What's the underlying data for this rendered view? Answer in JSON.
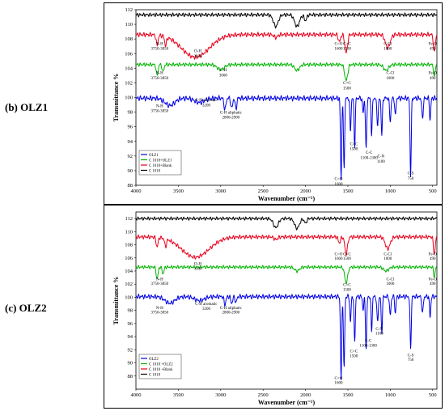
{
  "panels": [
    {
      "label": "(b)   OLZ1",
      "chart_data": {
        "type": "line",
        "xlabel": "Wavenumber (cm⁻¹)",
        "ylabel": "Transmittance %",
        "xlim": [
          4000,
          450
        ],
        "ylim": [
          88,
          112
        ],
        "x_reversed": true,
        "xticks": [
          4000,
          3500,
          3000,
          2500,
          2000,
          1500,
          1000,
          500
        ],
        "yticks": [
          88,
          90,
          92,
          94,
          96,
          98,
          100,
          102,
          104,
          106,
          108,
          110,
          112
        ],
        "legend": [
          "OLZ1",
          "C 1018+OLZ1",
          "C 1018+Blank",
          "C 1018"
        ],
        "series": [
          {
            "name": "C 1018",
            "color": "#000000",
            "base": 111.3,
            "noise": 0.25,
            "peaks": [
              [
                2350,
                1.6,
                40
              ],
              [
                2100,
                1.6,
                40
              ],
              [
                2000,
                0.8,
                20
              ]
            ]
          },
          {
            "name": "C 1018+Blank",
            "color": "#e8001c",
            "base": 108.6,
            "noise": 0.3,
            "peaks": [
              [
                3300,
                3.1,
                230
              ],
              [
                3750,
                1.4,
                15
              ],
              [
                3650,
                1.2,
                15
              ],
              [
                1600,
                1.0,
                18
              ],
              [
                1520,
                2.5,
                22
              ],
              [
                1030,
                1.8,
                40
              ],
              [
                480,
                2.5,
                15
              ],
              [
                2350,
                0.4,
                30
              ]
            ]
          },
          {
            "name": "C 1018+OLZ1",
            "color": "#00b400",
            "base": 104.5,
            "noise": 0.25,
            "peaks": [
              [
                3750,
                1.5,
                15
              ],
              [
                3680,
                1.0,
                15
              ],
              [
                3000,
                0.7,
                60
              ],
              [
                1520,
                2.2,
                25
              ],
              [
                2100,
                0.8,
                40
              ],
              [
                480,
                1.8,
                12
              ],
              [
                1050,
                0.8,
                40
              ]
            ]
          },
          {
            "name": "OLZ1",
            "color": "#0000e6",
            "base": 99.9,
            "noise": 0.35,
            "peaks": [
              [
                3600,
                1.0,
                80
              ],
              [
                3250,
                0.6,
                80
              ],
              [
                2950,
                1.6,
                15
              ],
              [
                2870,
                1.4,
                15
              ],
              [
                2820,
                1.6,
                12
              ],
              [
                1580,
                11.2,
                10
              ],
              [
                1545,
                9.5,
                10
              ],
              [
                1470,
                4.5,
                10
              ],
              [
                1420,
                6.5,
                10
              ],
              [
                1320,
                2.0,
                10
              ],
              [
                1285,
                7.2,
                10
              ],
              [
                1220,
                5.0,
                10
              ],
              [
                1150,
                3.5,
                12
              ],
              [
                1100,
                5.0,
                10
              ],
              [
                1000,
                3.0,
                12
              ],
              [
                940,
                2.5,
                10
              ],
              [
                760,
                10.5,
                10
              ],
              [
                620,
                2.8,
                12
              ],
              [
                530,
                3.0,
                10
              ]
            ]
          }
        ],
        "annotations": [
          {
            "text": "N-H",
            "x": 3720,
            "y": 107.2
          },
          {
            "text": "3750-3850",
            "x": 3720,
            "y": 106.5
          },
          {
            "text": "O-H",
            "x": 3270,
            "y": 106.2
          },
          {
            "text": "3300",
            "x": 3270,
            "y": 105.5
          },
          {
            "text": "C=O",
            "x": 1610,
            "y": 107.2
          },
          {
            "text": "1600",
            "x": 1610,
            "y": 106.5
          },
          {
            "text": "C=C",
            "x": 1510,
            "y": 107.2
          },
          {
            "text": "1500",
            "x": 1510,
            "y": 106.5
          },
          {
            "text": "C-Cl",
            "x": 1030,
            "y": 107.2
          },
          {
            "text": "1000",
            "x": 1030,
            "y": 106.5
          },
          {
            "text": "Fe-O",
            "x": 500,
            "y": 107.2
          },
          {
            "text": "490",
            "x": 500,
            "y": 106.5
          },
          {
            "text": "N-H",
            "x": 3720,
            "y": 103.2
          },
          {
            "text": "3750-3850",
            "x": 3720,
            "y": 102.5
          },
          {
            "text": "C-H",
            "x": 2970,
            "y": 103.6
          },
          {
            "text": "3000",
            "x": 2970,
            "y": 102.9
          },
          {
            "text": "C=C",
            "x": 1510,
            "y": 101.8
          },
          {
            "text": "1500",
            "x": 1510,
            "y": 101.1
          },
          {
            "text": "C-Cl",
            "x": 1000,
            "y": 103.2
          },
          {
            "text": "1000",
            "x": 1000,
            "y": 102.5
          },
          {
            "text": "Fe-O",
            "x": 500,
            "y": 103.2
          },
          {
            "text": "490",
            "x": 500,
            "y": 102.5
          },
          {
            "text": "N-H",
            "x": 3720,
            "y": 98.7
          },
          {
            "text": "3750-3850",
            "x": 3720,
            "y": 98.0
          },
          {
            "text": "C-H aromatic",
            "x": 3170,
            "y": 99.5
          },
          {
            "text": "3200",
            "x": 3170,
            "y": 98.8
          },
          {
            "text": "C-H aliphatic",
            "x": 2880,
            "y": 97.8
          },
          {
            "text": "2800-2900",
            "x": 2880,
            "y": 97.1
          },
          {
            "text": "C=C",
            "x": 1430,
            "y": 93.5
          },
          {
            "text": "1500",
            "x": 1430,
            "y": 92.8
          },
          {
            "text": "C-N",
            "x": 1110,
            "y": 91.8
          },
          {
            "text": "1100",
            "x": 1110,
            "y": 91.1
          },
          {
            "text": "C-C",
            "x": 1250,
            "y": 92.3
          },
          {
            "text": "1100-1300",
            "x": 1250,
            "y": 91.6
          },
          {
            "text": "C=O",
            "x": 1610,
            "y": 88.7
          },
          {
            "text": "1600",
            "x": 1610,
            "y": 88.0
          },
          {
            "text": "C-S",
            "x": 760,
            "y": 89.5
          },
          {
            "text": "750",
            "x": 760,
            "y": 88.8
          }
        ]
      }
    },
    {
      "label": "(c)   OLZ2",
      "chart_data": {
        "type": "line",
        "xlabel": "Wavenumber (cm⁻¹)",
        "ylabel": "Transmittance %",
        "xlim": [
          4000,
          450
        ],
        "ylim": [
          86,
          113
        ],
        "x_reversed": true,
        "xticks": [
          4000,
          3500,
          3000,
          2500,
          2000,
          1500,
          1000,
          500
        ],
        "yticks": [
          88,
          90,
          92,
          94,
          96,
          98,
          100,
          102,
          104,
          106,
          108,
          110,
          112
        ],
        "legend": [
          "OLZ2",
          "C 1018 +OLZ2",
          "C 1018 +Blank",
          "C 1018"
        ],
        "series": [
          {
            "name": "C 1018",
            "color": "#000000",
            "base": 112.0,
            "noise": 0.25,
            "peaks": [
              [
                2350,
                1.4,
                40
              ],
              [
                2100,
                1.5,
                40
              ],
              [
                2000,
                0.7,
                20
              ]
            ]
          },
          {
            "name": "C 1018 +Blank",
            "color": "#e8001c",
            "base": 109.2,
            "noise": 0.3,
            "peaks": [
              [
                3300,
                3.1,
                230
              ],
              [
                3750,
                1.5,
                15
              ],
              [
                3650,
                1.2,
                15
              ],
              [
                1600,
                0.9,
                18
              ],
              [
                1520,
                2.6,
                22
              ],
              [
                1030,
                1.8,
                40
              ],
              [
                480,
                2.6,
                15
              ],
              [
                2350,
                0.4,
                30
              ]
            ]
          },
          {
            "name": "C 1018 +OLZ2",
            "color": "#00b400",
            "base": 104.6,
            "noise": 0.25,
            "peaks": [
              [
                3750,
                1.8,
                15
              ],
              [
                3680,
                1.0,
                15
              ],
              [
                1520,
                2.4,
                25
              ],
              [
                2100,
                0.6,
                40
              ],
              [
                480,
                1.5,
                12
              ],
              [
                1050,
                0.6,
                40
              ]
            ]
          },
          {
            "name": "OLZ2",
            "color": "#0000e6",
            "base": 100.1,
            "noise": 0.35,
            "peaks": [
              [
                3600,
                1.0,
                80
              ],
              [
                3250,
                0.6,
                80
              ],
              [
                2950,
                1.2,
                15
              ],
              [
                2870,
                1.0,
                15
              ],
              [
                2820,
                1.0,
                12
              ],
              [
                1580,
                12.8,
                10
              ],
              [
                1545,
                11.0,
                10
              ],
              [
                1470,
                4.0,
                10
              ],
              [
                1420,
                7.0,
                10
              ],
              [
                1320,
                2.0,
                10
              ],
              [
                1285,
                8.0,
                10
              ],
              [
                1220,
                5.2,
                10
              ],
              [
                1150,
                3.8,
                12
              ],
              [
                1100,
                5.5,
                10
              ],
              [
                1000,
                2.8,
                12
              ],
              [
                940,
                2.5,
                10
              ],
              [
                760,
                8.0,
                10
              ],
              [
                620,
                2.6,
                12
              ],
              [
                530,
                3.2,
                10
              ]
            ]
          }
        ],
        "annotations": [
          {
            "text": "O-H",
            "x": 3270,
            "y": 104.9
          },
          {
            "text": "3300",
            "x": 3270,
            "y": 104.2
          },
          {
            "text": "C=O",
            "x": 1610,
            "y": 106.4
          },
          {
            "text": "1600",
            "x": 1610,
            "y": 105.7
          },
          {
            "text": "C=C",
            "x": 1510,
            "y": 106.4
          },
          {
            "text": "1500",
            "x": 1510,
            "y": 105.7
          },
          {
            "text": "C-Cl",
            "x": 1030,
            "y": 106.4
          },
          {
            "text": "1000",
            "x": 1030,
            "y": 105.7
          },
          {
            "text": "Fe-O",
            "x": 500,
            "y": 106.4
          },
          {
            "text": "490",
            "x": 500,
            "y": 105.7
          },
          {
            "text": "N-H",
            "x": 3720,
            "y": 102.6
          },
          {
            "text": "3750-3850",
            "x": 3720,
            "y": 101.9
          },
          {
            "text": "C=C",
            "x": 1510,
            "y": 101.7
          },
          {
            "text": "1500",
            "x": 1510,
            "y": 101.0
          },
          {
            "text": "C-Cl",
            "x": 1000,
            "y": 102.6
          },
          {
            "text": "1000",
            "x": 1000,
            "y": 101.9
          },
          {
            "text": "Fe-O",
            "x": 500,
            "y": 102.6
          },
          {
            "text": "490",
            "x": 500,
            "y": 101.9
          },
          {
            "text": "N-H",
            "x": 3720,
            "y": 98.2
          },
          {
            "text": "3750-3850",
            "x": 3720,
            "y": 97.5
          },
          {
            "text": "C-H aromatic",
            "x": 3170,
            "y": 98.8
          },
          {
            "text": "3200",
            "x": 3170,
            "y": 98.1
          },
          {
            "text": "C-H aliphatic",
            "x": 2880,
            "y": 98.2
          },
          {
            "text": "2800-2900",
            "x": 2880,
            "y": 97.5
          },
          {
            "text": "C=C",
            "x": 1430,
            "y": 91.6
          },
          {
            "text": "1500",
            "x": 1430,
            "y": 90.9
          },
          {
            "text": "C-N",
            "x": 1130,
            "y": 95.0
          },
          {
            "text": "1100",
            "x": 1130,
            "y": 94.3
          },
          {
            "text": "C-C",
            "x": 1260,
            "y": 93.2
          },
          {
            "text": "1100-1300",
            "x": 1260,
            "y": 92.5
          },
          {
            "text": "C=O",
            "x": 1610,
            "y": 87.5
          },
          {
            "text": "1600",
            "x": 1610,
            "y": 86.8
          },
          {
            "text": "C-S",
            "x": 760,
            "y": 91.0
          },
          {
            "text": "750",
            "x": 760,
            "y": 90.3
          }
        ]
      }
    }
  ]
}
